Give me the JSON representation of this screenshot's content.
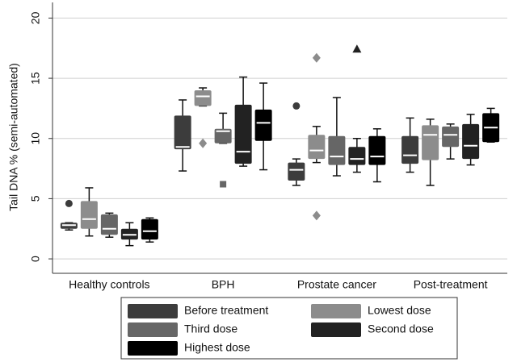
{
  "chart_data": {
    "type": "box",
    "y_label": "Tail DNA % (semi-automated)",
    "categories": [
      "Healthy controls",
      "BPH",
      "Prostate cancer",
      "Post-treatment"
    ],
    "ylim": [
      -1.2,
      21.3
    ],
    "yticks": [
      0,
      5,
      10,
      15,
      20
    ],
    "grid": true,
    "series": [
      {
        "name": "Before treatment",
        "color": "#3c3c3c",
        "marker": "circle",
        "min": [
          2.4,
          7.3,
          6.1,
          7.2
        ],
        "q1": [
          2.5,
          9.1,
          6.5,
          7.9
        ],
        "median": [
          2.8,
          9.3,
          7.4,
          8.6
        ],
        "q3": [
          3.0,
          11.9,
          8.0,
          10.2
        ],
        "max": [
          3.0,
          13.2,
          8.3,
          11.7
        ],
        "outliers": [
          [
            4.6
          ],
          [],
          [
            12.7
          ],
          []
        ]
      },
      {
        "name": "Lowest dose",
        "color": "#8c8c8c",
        "marker": "diamond",
        "min": [
          1.9,
          12.7,
          8.0,
          6.1
        ],
        "q1": [
          2.5,
          12.7,
          8.3,
          8.2
        ],
        "median": [
          3.3,
          13.5,
          9.0,
          10.3
        ],
        "q3": [
          4.8,
          14.0,
          10.3,
          11.1
        ],
        "max": [
          5.9,
          14.2,
          11.0,
          11.6
        ],
        "outliers": [
          [],
          [
            9.6
          ],
          [
            16.7,
            3.6
          ],
          []
        ]
      },
      {
        "name": "Third dose",
        "color": "#666666",
        "marker": "square",
        "min": [
          1.8,
          9.6,
          6.9,
          8.3
        ],
        "q1": [
          2.0,
          9.6,
          7.8,
          9.3
        ],
        "median": [
          2.5,
          10.6,
          8.5,
          10.3
        ],
        "q3": [
          3.7,
          10.8,
          10.2,
          11.0
        ],
        "max": [
          3.8,
          12.1,
          13.4,
          11.2
        ],
        "outliers": [
          [],
          [
            6.2
          ],
          [],
          []
        ]
      },
      {
        "name": "Second dose",
        "color": "#222222",
        "marker": "triangle",
        "min": [
          1.1,
          7.7,
          7.2,
          7.8
        ],
        "q1": [
          1.6,
          7.9,
          7.8,
          8.3
        ],
        "median": [
          2.0,
          8.9,
          8.3,
          9.4
        ],
        "q3": [
          2.5,
          12.8,
          9.3,
          11.2
        ],
        "max": [
          3.0,
          15.1,
          10.0,
          12.0
        ],
        "outliers": [
          [],
          [],
          [
            17.4
          ],
          []
        ]
      },
      {
        "name": "Highest dose",
        "color": "#000000",
        "marker": "circle",
        "min": [
          1.4,
          7.4,
          6.4,
          9.7
        ],
        "q1": [
          1.6,
          9.8,
          7.8,
          9.7
        ],
        "median": [
          2.3,
          11.3,
          8.5,
          10.9
        ],
        "q3": [
          3.3,
          12.4,
          10.2,
          12.1
        ],
        "max": [
          3.4,
          14.6,
          10.8,
          12.5
        ],
        "outliers": [
          [],
          [],
          [],
          []
        ]
      }
    ]
  }
}
